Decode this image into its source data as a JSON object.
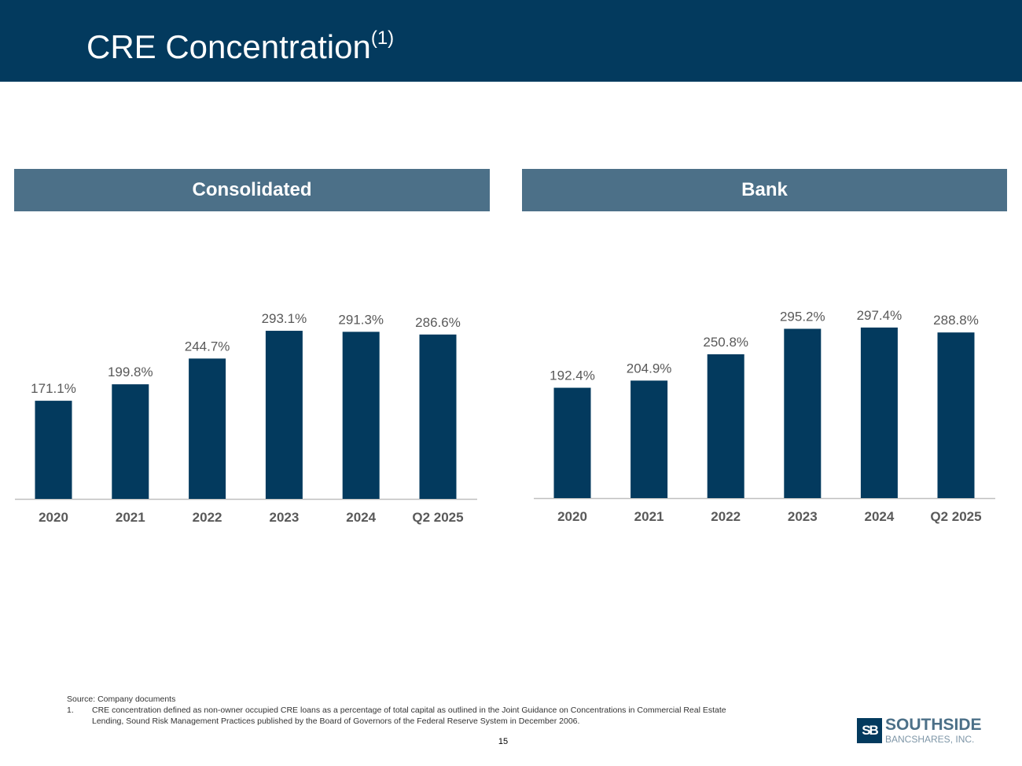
{
  "header": {
    "title": "CRE Concentration",
    "title_superscript": "(1)"
  },
  "panels": {
    "left": "Consolidated",
    "right": "Bank"
  },
  "colors": {
    "header": "#033a5e",
    "panel": "#4c7088",
    "bar": "#033a5e",
    "label": "#595959",
    "axis": "#bfbfbf"
  },
  "chart_data": [
    {
      "type": "bar",
      "title": "Consolidated",
      "categories": [
        "2020",
        "2021",
        "2022",
        "2023",
        "2024",
        "Q2 2025"
      ],
      "values": [
        171.1,
        199.8,
        244.7,
        293.1,
        291.3,
        286.6
      ],
      "data_labels": [
        "171.1%",
        "199.8%",
        "244.7%",
        "293.1%",
        "291.3%",
        "286.6%"
      ],
      "ylim": [
        0,
        300
      ],
      "grid": false,
      "legend": "none"
    },
    {
      "type": "bar",
      "title": "Bank",
      "categories": [
        "2020",
        "2021",
        "2022",
        "2023",
        "2024",
        "Q2 2025"
      ],
      "values": [
        192.4,
        204.9,
        250.8,
        295.2,
        297.4,
        288.8
      ],
      "data_labels": [
        "192.4%",
        "204.9%",
        "250.8%",
        "295.2%",
        "297.4%",
        "288.8%"
      ],
      "ylim": [
        0,
        300
      ],
      "grid": false,
      "legend": "none"
    }
  ],
  "footnotes": {
    "source": "Source: Company documents",
    "note_number": "1.",
    "note_text": "CRE concentration defined as non-owner occupied CRE loans as a percentage of total capital as outlined in the Joint Guidance on Concentrations in Commercial Real Estate Lending, Sound Risk Management Practices published by the Board of Governors of the Federal Reserve System in December 2006."
  },
  "page_number": "15",
  "logo": {
    "mark": "SB",
    "name_top": "SOUTHSIDE",
    "name_bottom": "BANCSHARES, INC."
  }
}
